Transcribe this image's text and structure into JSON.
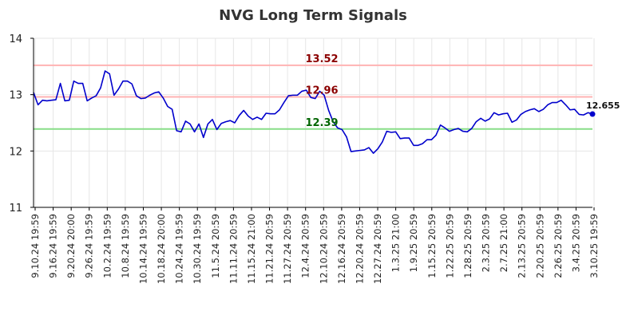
{
  "chart_data": {
    "type": "line",
    "title": "NVG Long Term Signals",
    "xlabel": "",
    "ylabel": "",
    "ylim": [
      11,
      14
    ],
    "yticks": [
      11,
      12,
      13,
      14
    ],
    "grid": true,
    "x_tick_labels": [
      "9.10.24 19:59",
      "9.16.24 19:59",
      "9.20.24 20:00",
      "9.26.24 19:59",
      "10.2.24 19:59",
      "10.8.24 19:59",
      "10.14.24 19:59",
      "10.18.24 20:00",
      "10.24.24 19:59",
      "10.30.24 19:59",
      "11.5.24 20:59",
      "11.11.24 20:59",
      "11.15.24 21:00",
      "11.21.24 20:59",
      "11.27.24 20:59",
      "12.4.24 20:59",
      "12.10.24 20:59",
      "12.16.24 20:59",
      "12.20.24 20:59",
      "12.27.24 20:59",
      "1.3.25 21:00",
      "1.9.25 20:59",
      "1.15.25 20:59",
      "1.22.25 20:59",
      "1.28.25 20:59",
      "2.3.25 20:59",
      "2.7.25 21:00",
      "2.13.25 20:59",
      "2.20.25 20:59",
      "2.26.25 20:59",
      "3.4.25 20:59",
      "3.10.25 19:59"
    ],
    "series": [
      {
        "color": "#0000cc",
        "values": [
          13.04,
          12.82,
          12.9,
          12.89,
          12.9,
          12.91,
          13.2,
          12.89,
          12.9,
          13.24,
          13.2,
          13.2,
          12.89,
          12.94,
          12.98,
          13.12,
          13.42,
          13.37,
          12.99,
          13.1,
          13.24,
          13.24,
          13.19,
          12.98,
          12.93,
          12.94,
          12.99,
          13.03,
          13.05,
          12.94,
          12.79,
          12.74,
          12.36,
          12.34,
          12.53,
          12.48,
          12.34,
          12.48,
          12.24,
          12.48,
          12.56,
          12.38,
          12.49,
          12.52,
          12.54,
          12.5,
          12.63,
          12.72,
          12.62,
          12.56,
          12.6,
          12.56,
          12.67,
          12.66,
          12.66,
          12.73,
          12.86,
          12.98,
          12.99,
          12.99,
          13.06,
          13.08,
          12.95,
          12.93,
          13.06,
          12.99,
          12.72,
          12.52,
          12.41,
          12.38,
          12.25,
          11.99,
          12.0,
          12.01,
          12.02,
          12.06,
          11.96,
          12.04,
          12.16,
          12.35,
          12.33,
          12.34,
          12.22,
          12.23,
          12.23,
          12.1,
          12.1,
          12.13,
          12.2,
          12.2,
          12.28,
          12.46,
          12.41,
          12.35,
          12.38,
          12.4,
          12.35,
          12.34,
          12.4,
          12.52,
          12.58,
          12.53,
          12.57,
          12.68,
          12.64,
          12.66,
          12.67,
          12.51,
          12.55,
          12.65,
          12.7,
          12.73,
          12.75,
          12.7,
          12.74,
          12.82,
          12.86,
          12.86,
          12.9,
          12.82,
          12.73,
          12.74,
          12.65,
          12.64,
          12.68,
          12.655
        ]
      }
    ],
    "hlines": [
      {
        "value": 13.52,
        "label": "13.52",
        "line_color": "#ffb3b3",
        "label_color": "#8b0000"
      },
      {
        "value": 12.96,
        "label": "12.96",
        "line_color": "#ffb3b3",
        "label_color": "#8b0000"
      },
      {
        "value": 12.39,
        "label": "12.39",
        "line_color": "#88dd88",
        "label_color": "#006400"
      }
    ],
    "last_value_label": "12.655"
  }
}
